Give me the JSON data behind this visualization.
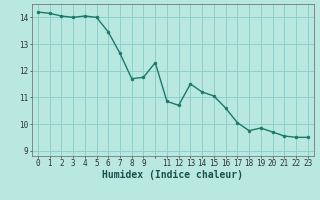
{
  "x": [
    0,
    1,
    2,
    3,
    4,
    5,
    6,
    7,
    8,
    9,
    10,
    11,
    12,
    13,
    14,
    15,
    16,
    17,
    18,
    19,
    20,
    21,
    22,
    23
  ],
  "y": [
    14.2,
    14.15,
    14.05,
    14.0,
    14.05,
    14.0,
    13.45,
    12.65,
    11.7,
    11.75,
    12.3,
    10.85,
    10.7,
    11.5,
    11.2,
    11.05,
    10.6,
    10.05,
    9.75,
    9.85,
    9.7,
    9.55,
    9.5,
    9.5
  ],
  "line_color": "#1a7a6a",
  "marker": "o",
  "markersize": 2.0,
  "linewidth": 1.0,
  "bg_color": "#b8e8e0",
  "grid_color": "#88cccc",
  "xlabel": "Humidex (Indice chaleur)",
  "xlabel_fontsize": 7,
  "xlabel_bold": true,
  "xlim": [
    -0.5,
    23.5
  ],
  "ylim": [
    8.8,
    14.5
  ],
  "yticks": [
    9,
    10,
    11,
    12,
    13,
    14
  ],
  "xticks": [
    0,
    1,
    2,
    3,
    4,
    5,
    6,
    7,
    8,
    9,
    10,
    11,
    12,
    13,
    14,
    15,
    16,
    17,
    18,
    19,
    20,
    21,
    22,
    23
  ],
  "xtick_labels": [
    "0",
    "1",
    "2",
    "3",
    "4",
    "5",
    "6",
    "7",
    "8",
    "9",
    "",
    "11",
    "12",
    "13",
    "14",
    "15",
    "16",
    "17",
    "18",
    "19",
    "20",
    "21",
    "22",
    "23"
  ],
  "tick_fontsize": 5.5
}
